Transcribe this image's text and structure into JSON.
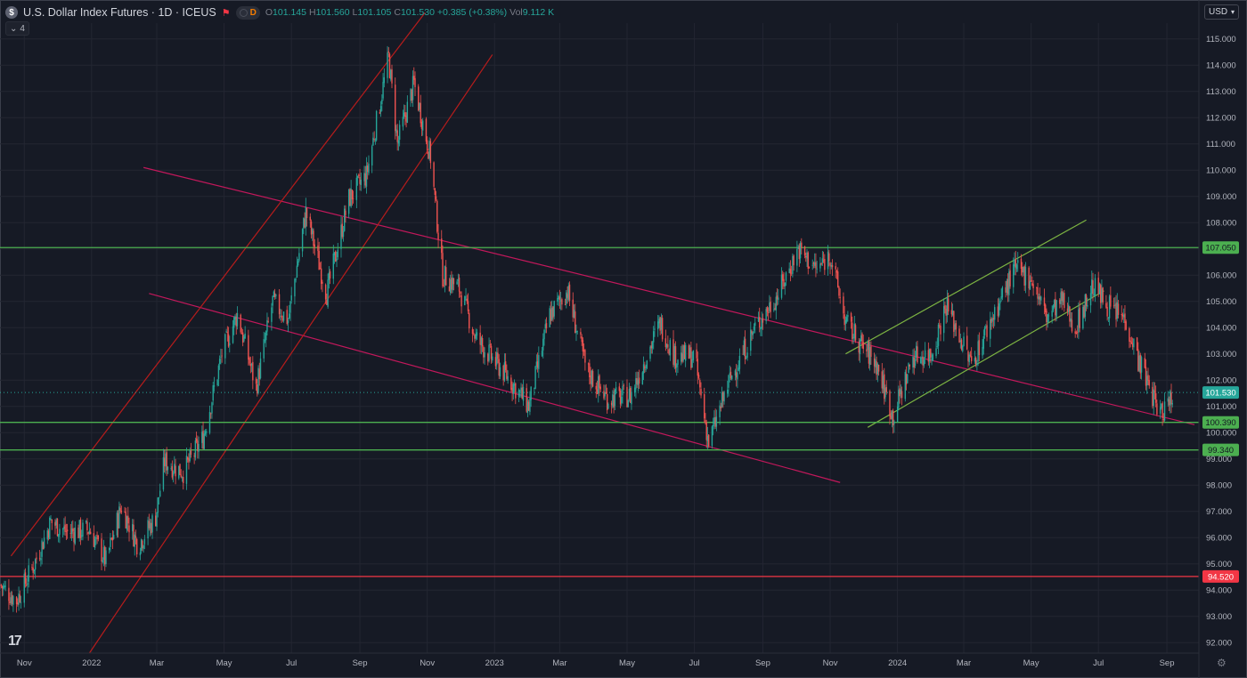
{
  "header": {
    "symbol_icon": "dollar-sign-icon",
    "title": "U.S. Dollar Index Futures · 1D · ICEUS",
    "d_badge": "D",
    "ohlc": [
      {
        "k": "O",
        "v": "101.145"
      },
      {
        "k": "H",
        "v": "101.560"
      },
      {
        "k": "L",
        "v": "101.105"
      },
      {
        "k": "C",
        "v": "101.530"
      },
      {
        "k": "",
        "v": "+0.385 (+0.38%)"
      },
      {
        "k": "Vol",
        "v": "9.112 K"
      }
    ],
    "indicator_count": "4",
    "currency": "USD"
  },
  "chart_data": {
    "type": "candlestick",
    "x_range": [
      "2021-10-10",
      "2024-09-30"
    ],
    "ylim": [
      91.6,
      115.6
    ],
    "y_ticks": [
      "92.000",
      "93.000",
      "94.000",
      "95.000",
      "96.000",
      "97.000",
      "98.000",
      "99.000",
      "100.000",
      "101.000",
      "102.000",
      "103.000",
      "104.000",
      "105.000",
      "106.000",
      "107.000",
      "108.000",
      "109.000",
      "110.000",
      "111.000",
      "112.000",
      "113.000",
      "114.000",
      "115.000"
    ],
    "x_ticks": [
      {
        "date": "2021-11-01",
        "label": "Nov"
      },
      {
        "date": "2022-01-01",
        "label": "2022"
      },
      {
        "date": "2022-03-01",
        "label": "Mar"
      },
      {
        "date": "2022-05-01",
        "label": "May"
      },
      {
        "date": "2022-07-01",
        "label": "Jul"
      },
      {
        "date": "2022-09-01",
        "label": "Sep"
      },
      {
        "date": "2022-11-01",
        "label": "Nov"
      },
      {
        "date": "2023-01-01",
        "label": "2023"
      },
      {
        "date": "2023-03-01",
        "label": "Mar"
      },
      {
        "date": "2023-05-01",
        "label": "May"
      },
      {
        "date": "2023-07-01",
        "label": "Jul"
      },
      {
        "date": "2023-09-01",
        "label": "Sep"
      },
      {
        "date": "2023-11-01",
        "label": "Nov"
      },
      {
        "date": "2024-01-01",
        "label": "2024"
      },
      {
        "date": "2024-03-01",
        "label": "Mar"
      },
      {
        "date": "2024-05-01",
        "label": "May"
      },
      {
        "date": "2024-07-01",
        "label": "Jul"
      },
      {
        "date": "2024-09-01",
        "label": "Sep"
      }
    ],
    "price_path": [
      [
        "2021-10-10",
        94.2
      ],
      [
        "2021-10-25",
        93.6
      ],
      [
        "2021-11-10",
        95.0
      ],
      [
        "2021-11-25",
        96.6
      ],
      [
        "2021-12-10",
        96.2
      ],
      [
        "2021-12-30",
        96.3
      ],
      [
        "2022-01-14",
        95.1
      ],
      [
        "2022-01-28",
        97.2
      ],
      [
        "2022-02-12",
        95.7
      ],
      [
        "2022-02-28",
        96.8
      ],
      [
        "2022-03-08",
        98.9
      ],
      [
        "2022-03-25",
        98.5
      ],
      [
        "2022-04-12",
        99.8
      ],
      [
        "2022-04-29",
        103.0
      ],
      [
        "2022-05-13",
        104.5
      ],
      [
        "2022-05-30",
        101.7
      ],
      [
        "2022-06-14",
        105.0
      ],
      [
        "2022-06-28",
        104.3
      ],
      [
        "2022-07-14",
        108.4
      ],
      [
        "2022-08-02",
        105.3
      ],
      [
        "2022-08-22",
        108.9
      ],
      [
        "2022-09-07",
        109.8
      ],
      [
        "2022-09-27",
        114.3
      ],
      [
        "2022-10-05",
        111.0
      ],
      [
        "2022-10-20",
        113.3
      ],
      [
        "2022-11-04",
        110.5
      ],
      [
        "2022-11-15",
        106.0
      ],
      [
        "2022-11-30",
        105.5
      ],
      [
        "2022-12-15",
        103.6
      ],
      [
        "2023-01-15",
        102.0
      ],
      [
        "2023-02-01",
        101.0
      ],
      [
        "2023-02-20",
        104.5
      ],
      [
        "2023-03-08",
        105.4
      ],
      [
        "2023-03-25",
        102.4
      ],
      [
        "2023-04-13",
        101.3
      ],
      [
        "2023-05-04",
        101.4
      ],
      [
        "2023-05-31",
        104.2
      ],
      [
        "2023-06-13",
        102.9
      ],
      [
        "2023-07-01",
        102.9
      ],
      [
        "2023-07-14",
        99.6
      ],
      [
        "2023-08-01",
        101.9
      ],
      [
        "2023-08-25",
        104.0
      ],
      [
        "2023-09-15",
        105.3
      ],
      [
        "2023-10-03",
        107.0
      ],
      [
        "2023-10-20",
        106.2
      ],
      [
        "2023-11-01",
        106.8
      ],
      [
        "2023-11-15",
        104.2
      ],
      [
        "2023-11-30",
        103.3
      ],
      [
        "2023-12-13",
        102.6
      ],
      [
        "2023-12-28",
        100.6
      ],
      [
        "2024-01-15",
        102.9
      ],
      [
        "2024-02-01",
        103.0
      ],
      [
        "2024-02-14",
        104.9
      ],
      [
        "2024-03-08",
        102.6
      ],
      [
        "2024-03-28",
        104.5
      ],
      [
        "2024-04-16",
        106.2
      ],
      [
        "2024-05-01",
        105.9
      ],
      [
        "2024-05-15",
        104.4
      ],
      [
        "2024-05-29",
        105.0
      ],
      [
        "2024-06-10",
        104.0
      ],
      [
        "2024-06-26",
        105.6
      ],
      [
        "2024-07-10",
        104.8
      ],
      [
        "2024-07-26",
        104.3
      ],
      [
        "2024-08-06",
        102.8
      ],
      [
        "2024-08-26",
        100.7
      ],
      [
        "2024-09-06",
        101.5
      ]
    ],
    "horizontal_levels": [
      {
        "price": 107.05,
        "label": "107.050",
        "color": "#4caf50"
      },
      {
        "price": 100.39,
        "label": "100.390",
        "color": "#4caf50"
      },
      {
        "price": 99.34,
        "label": "99.340",
        "color": "#4caf50"
      },
      {
        "price": 94.52,
        "label": "94.520",
        "color": "#f23645"
      }
    ],
    "current_price": {
      "price": 101.53,
      "label": "101.530",
      "color": "#26a69a"
    },
    "trend_lines": [
      {
        "color": "#c2185b",
        "from": [
          "2022-02-17",
          110.1
        ],
        "to": [
          "2024-09-26",
          100.3
        ]
      },
      {
        "color": "#c2185b",
        "from": [
          "2022-02-22",
          105.3
        ],
        "to": [
          "2023-11-10",
          98.1
        ]
      },
      {
        "color": "#b71c1c",
        "from": [
          "2021-10-20",
          95.3
        ],
        "to": [
          "2022-10-30",
          116.0
        ]
      },
      {
        "color": "#b71c1c",
        "from": [
          "2021-12-30",
          91.6
        ],
        "to": [
          "2022-12-30",
          114.4
        ]
      },
      {
        "color": "#7cb342",
        "from": [
          "2023-11-15",
          103.0
        ],
        "to": [
          "2024-06-20",
          108.1
        ]
      },
      {
        "color": "#7cb342",
        "from": [
          "2023-12-05",
          100.2
        ],
        "to": [
          "2024-07-06",
          105.4
        ]
      }
    ],
    "colors": {
      "up": "#26a69a",
      "down": "#ef5350",
      "background": "#161a25",
      "grid": "#232632"
    }
  }
}
